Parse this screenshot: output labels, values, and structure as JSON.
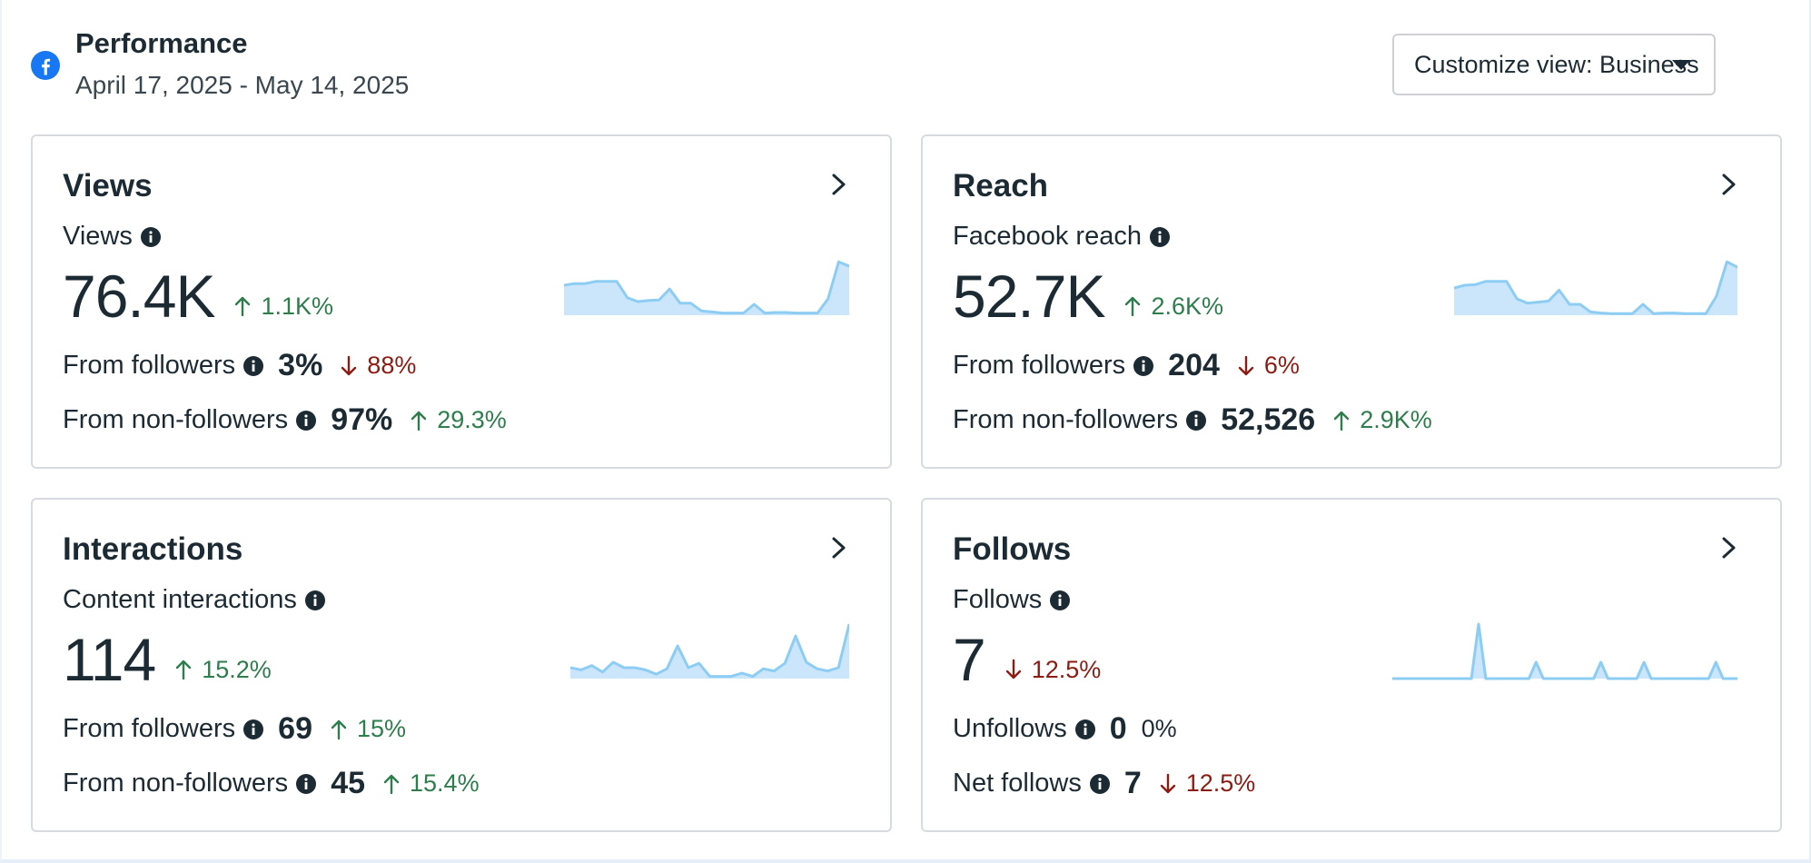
{
  "header": {
    "title": "Performance",
    "date_range": "April 17, 2025 - May 14, 2025",
    "customize_label": "Customize view: Business"
  },
  "colors": {
    "up": "#2e7d4c",
    "down": "#8c1c13",
    "spark_line": "#8ecdf3",
    "spark_fill": "#cbe6fa",
    "facebook_blue": "#1877f2"
  },
  "cards": {
    "views": {
      "title": "Views",
      "metric_label": "Views",
      "value": "76.4K",
      "delta": "1.1K%",
      "delta_dir": "up",
      "row1": {
        "label": "From followers",
        "value": "3%",
        "delta": "88%",
        "dir": "down"
      },
      "row2": {
        "label": "From non-followers",
        "value": "97%",
        "delta": "29.3%",
        "dir": "up"
      },
      "trend": [
        0.55,
        0.58,
        0.58,
        0.62,
        0.62,
        0.62,
        0.32,
        0.25,
        0.27,
        0.28,
        0.48,
        0.22,
        0.22,
        0.08,
        0.06,
        0.04,
        0.04,
        0.04,
        0.2,
        0.04,
        0.05,
        0.05,
        0.04,
        0.04,
        0.04,
        0.3,
        0.98,
        0.9
      ]
    },
    "reach": {
      "title": "Reach",
      "metric_label": "Facebook reach",
      "value": "52.7K",
      "delta": "2.6K%",
      "delta_dir": "up",
      "row1": {
        "label": "From followers",
        "value": "204",
        "delta": "6%",
        "dir": "down"
      },
      "row2": {
        "label": "From non-followers",
        "value": "52,526",
        "delta": "2.9K%",
        "dir": "up"
      },
      "trend": [
        0.5,
        0.55,
        0.56,
        0.62,
        0.62,
        0.62,
        0.3,
        0.22,
        0.24,
        0.26,
        0.46,
        0.2,
        0.2,
        0.06,
        0.04,
        0.03,
        0.03,
        0.03,
        0.2,
        0.03,
        0.04,
        0.04,
        0.03,
        0.03,
        0.03,
        0.35,
        0.98,
        0.88
      ]
    },
    "interactions": {
      "title": "Interactions",
      "metric_label": "Content interactions",
      "value": "114",
      "delta": "15.2%",
      "delta_dir": "up",
      "row1": {
        "label": "From followers",
        "value": "69",
        "delta": "15%",
        "dir": "up"
      },
      "row2": {
        "label": "From non-followers",
        "value": "45",
        "delta": "15.4%",
        "dir": "up"
      },
      "trend": [
        0.2,
        0.16,
        0.24,
        0.12,
        0.3,
        0.2,
        0.2,
        0.16,
        0.08,
        0.18,
        0.6,
        0.2,
        0.28,
        0.04,
        0.04,
        0.04,
        0.1,
        0.04,
        0.18,
        0.14,
        0.28,
        0.78,
        0.3,
        0.18,
        0.14,
        0.2,
        1.0
      ]
    },
    "follows": {
      "title": "Follows",
      "metric_label": "Follows",
      "value": "7",
      "delta": "12.5%",
      "delta_dir": "down",
      "row1": {
        "label": "Unfollows",
        "value": "0",
        "delta": "0%",
        "dir": "neutral"
      },
      "row2": {
        "label": "Net follows",
        "value": "7",
        "delta": "12.5%",
        "dir": "down"
      },
      "trend": [
        0,
        0,
        0,
        0,
        0,
        0,
        0,
        0,
        0,
        0,
        0,
        0,
        1.0,
        0,
        0,
        0,
        0,
        0,
        0,
        0,
        0.3,
        0,
        0,
        0,
        0,
        0,
        0,
        0,
        0,
        0.3,
        0,
        0,
        0,
        0,
        0,
        0.3,
        0,
        0,
        0,
        0,
        0,
        0,
        0,
        0,
        0,
        0.3,
        0,
        0,
        0
      ]
    }
  }
}
